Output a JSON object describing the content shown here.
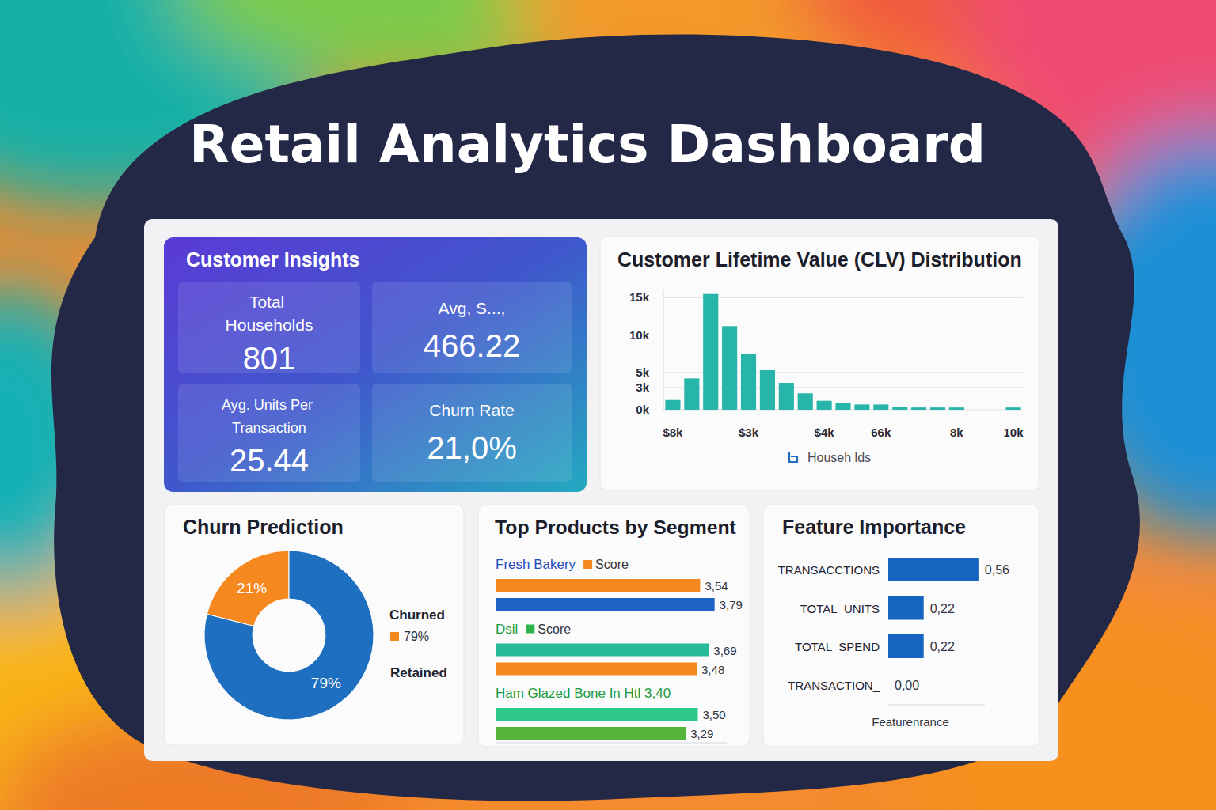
{
  "title": "Retail Analytics Dashboard",
  "kpi_panel": {
    "title": "Customer Insights",
    "cards": [
      {
        "label": "Total Households",
        "value": "801"
      },
      {
        "label": "Avg, S...,",
        "value": "466.22"
      },
      {
        "label": "Ayg. Units Per Transaction",
        "value": "25.44"
      },
      {
        "label": "Churn Rate",
        "value": "21,0%"
      }
    ]
  },
  "chart_data": [
    {
      "type": "bar",
      "title": "Customer Lifetime Value (CLV) Distribution",
      "categories": [
        "$8k",
        null,
        null,
        null,
        "$3k",
        null,
        null,
        null,
        "$4k",
        null,
        null,
        "66k",
        null,
        null,
        null,
        "8k",
        null,
        null,
        "10k"
      ],
      "series": [
        {
          "name": "Househ lds",
          "color": "#26b5a8",
          "values": [
            1300,
            4200,
            15500,
            11200,
            7500,
            5300,
            3600,
            2200,
            1200,
            900,
            700,
            700,
            400,
            300,
            300,
            300,
            0,
            0,
            300
          ]
        }
      ],
      "ylim": [
        0,
        16000
      ],
      "yticks": [
        {
          "value": 0,
          "label": "0k"
        },
        {
          "value": 3000,
          "label": "3k"
        },
        {
          "value": 5000,
          "label": "5k"
        },
        {
          "value": 10000,
          "label": "10k"
        },
        {
          "value": 15000,
          "label": "15k"
        }
      ],
      "grid": true,
      "legend": "bottom"
    },
    {
      "type": "pie",
      "title": "Churn Prediction",
      "categories": [
        "Churned",
        "Retained"
      ],
      "values": [
        21,
        79
      ],
      "colors": [
        "#f5891f",
        "#1f6fc0"
      ],
      "data_labels": true,
      "value_labels": [
        "21%",
        "79%"
      ],
      "legend": "right",
      "annotations": [
        "79%"
      ]
    },
    {
      "type": "bar",
      "orientation": "horizontal",
      "title": "Top Products by Segment",
      "groups": [
        {
          "name": "Fresh Bakery",
          "color": "#1f4fbf",
          "series": [
            {
              "name": "Score",
              "color": "#f5891f"
            }
          ],
          "values": [
            3.54,
            3.79
          ],
          "value_labels": [
            "3,54",
            "3,79"
          ],
          "colors": [
            "#f5891f",
            "#1f63c6"
          ]
        },
        {
          "name": "Dsil",
          "color": "#1a9a3c",
          "series": [
            {
              "name": "Score",
              "color": "#2bb24c"
            }
          ],
          "values": [
            3.69,
            3.48
          ],
          "value_labels": [
            "3,69",
            "3,48"
          ],
          "colors": [
            "#26b99a",
            "#f5891f"
          ]
        },
        {
          "name": "Ham Glazed Bone In Htl 3,40",
          "color": "#1a9a3c",
          "values": [
            3.5,
            3.29
          ],
          "value_labels": [
            "3,50",
            "3,29"
          ],
          "colors": [
            "#2ec88a",
            "#55b43a"
          ]
        }
      ],
      "xlim": [
        0,
        4
      ],
      "data_labels": true,
      "tick_labels": false
    },
    {
      "type": "bar",
      "orientation": "horizontal",
      "title": "Feature Importance",
      "categories": [
        "TRANSACCTIONS",
        "TOTAL_UNITS",
        "TOTAL_SPEND",
        "TRANSACTION_"
      ],
      "values": [
        0.56,
        0.22,
        0.22,
        0
      ],
      "value_labels": [
        "0,56",
        "0,22",
        "0,22",
        "0,00"
      ],
      "color": "#1565c0",
      "xlim": [
        0,
        0.6
      ],
      "x_label": "Featurenrance",
      "data_labels": true,
      "tick_labels": "y"
    }
  ]
}
